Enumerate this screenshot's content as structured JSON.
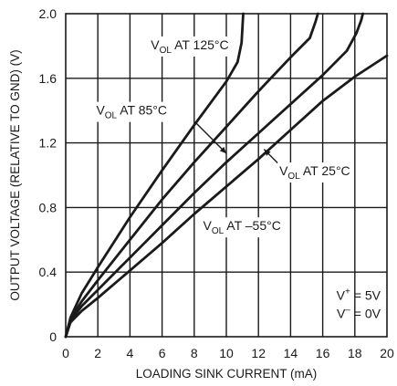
{
  "chart_data": {
    "type": "line",
    "title": "",
    "xlabel": "LOADING SINK CURRENT (mA)",
    "ylabel": "OUTPUT VOLTAGE (RELATIVE TO GND) (V)",
    "xlim": [
      0,
      20
    ],
    "ylim": [
      0,
      2.0
    ],
    "x_ticks": [
      "0",
      "2",
      "4",
      "6",
      "8",
      "10",
      "12",
      "14",
      "16",
      "18",
      "20"
    ],
    "y_ticks": [
      "0",
      "0.4",
      "0.8",
      "1.2",
      "1.6",
      "2.0"
    ],
    "grid": true,
    "series": [
      {
        "name": "125°C",
        "label_prefix": "V",
        "label_sub": "OL",
        "label_suffix": " AT 125°C",
        "points": [
          [
            0,
            0.0
          ],
          [
            0.3,
            0.12
          ],
          [
            1,
            0.27
          ],
          [
            2,
            0.43
          ],
          [
            4,
            0.74
          ],
          [
            6,
            1.03
          ],
          [
            8,
            1.31
          ],
          [
            10,
            1.58
          ],
          [
            10.7,
            1.7
          ],
          [
            10.95,
            1.82
          ],
          [
            11.05,
            2.0
          ]
        ]
      },
      {
        "name": "85°C",
        "label_prefix": "V",
        "label_sub": "OL",
        "label_suffix": " AT 85°C",
        "points": [
          [
            0,
            0.0
          ],
          [
            0.3,
            0.11
          ],
          [
            1,
            0.22
          ],
          [
            2,
            0.35
          ],
          [
            4,
            0.6
          ],
          [
            6,
            0.85
          ],
          [
            8,
            1.08
          ],
          [
            10,
            1.3
          ],
          [
            12,
            1.52
          ],
          [
            14,
            1.73
          ],
          [
            15.2,
            1.85
          ],
          [
            15.55,
            1.95
          ],
          [
            15.7,
            2.0
          ]
        ]
      },
      {
        "name": "25°C",
        "label_prefix": "V",
        "label_sub": "OL",
        "label_suffix": " AT 25°C",
        "points": [
          [
            0,
            0.0
          ],
          [
            0.3,
            0.1
          ],
          [
            1,
            0.19
          ],
          [
            2,
            0.29
          ],
          [
            4,
            0.49
          ],
          [
            6,
            0.69
          ],
          [
            8,
            0.89
          ],
          [
            10,
            1.08
          ],
          [
            12,
            1.26
          ],
          [
            14,
            1.44
          ],
          [
            16,
            1.62
          ],
          [
            17.5,
            1.77
          ],
          [
            18.1,
            1.88
          ],
          [
            18.4,
            1.96
          ],
          [
            18.5,
            2.0
          ]
        ]
      },
      {
        "name": "-55°C",
        "label_prefix": "V",
        "label_sub": "OL",
        "label_suffix": " AT –55°C",
        "points": [
          [
            0,
            0.0
          ],
          [
            0.3,
            0.09
          ],
          [
            1,
            0.16
          ],
          [
            2,
            0.24
          ],
          [
            4,
            0.41
          ],
          [
            6,
            0.58
          ],
          [
            8,
            0.76
          ],
          [
            10,
            0.93
          ],
          [
            12,
            1.1
          ],
          [
            14,
            1.28
          ],
          [
            16,
            1.46
          ],
          [
            18,
            1.61
          ],
          [
            20,
            1.74
          ]
        ]
      }
    ],
    "annotations": [
      {
        "name": "supply-pos",
        "prefix": "V",
        "sup": "+",
        "suffix": " = 5V"
      },
      {
        "name": "supply-neg",
        "prefix": "V",
        "sup": "–",
        "suffix": " = 0V"
      }
    ]
  }
}
